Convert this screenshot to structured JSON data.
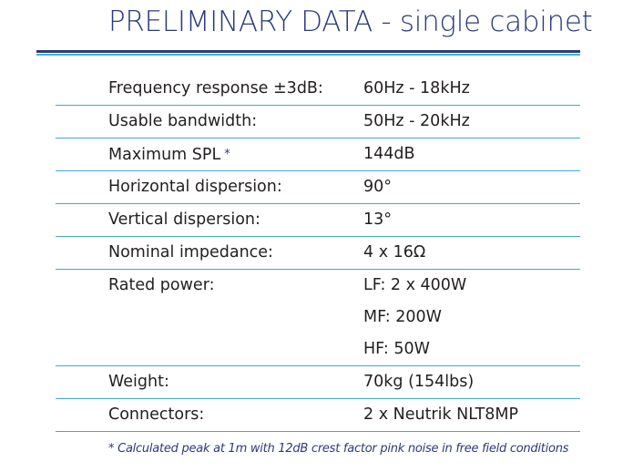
{
  "title": "PRELIMINARY DATA - single cabinet",
  "specs": [
    {
      "label": "Frequency response ±3dB:",
      "values": [
        "60Hz - 18kHz"
      ]
    },
    {
      "label": "Usable bandwidth:",
      "values": [
        "50Hz - 20kHz"
      ]
    },
    {
      "label": "Maximum SPL",
      "marker": "*",
      "values": [
        "144dB"
      ]
    },
    {
      "label": "Horizontal dispersion:",
      "values": [
        "90°"
      ]
    },
    {
      "label": "Vertical dispersion:",
      "values": [
        "13°"
      ]
    },
    {
      "label": "Nominal impedance:",
      "values": [
        "4 x 16Ω"
      ]
    },
    {
      "label": "Rated power:",
      "values": [
        "LF: 2 x 400W",
        "MF: 200W",
        "HF: 50W"
      ]
    },
    {
      "label": "Weight:",
      "values": [
        "70kg  (154lbs)"
      ]
    },
    {
      "label": "Connectors:",
      "values": [
        "2 x Neutrik NLT8MP"
      ]
    }
  ],
  "footnote": "* Calculated peak at 1m with 12dB crest factor pink noise in free field conditions",
  "colors": {
    "title": "#2b3a7c",
    "rule_dark": "#2b3a7c",
    "rule_light": "#3fb3e0",
    "row_divider": "#3fa8d8",
    "footnote": "#2b3a7c"
  }
}
